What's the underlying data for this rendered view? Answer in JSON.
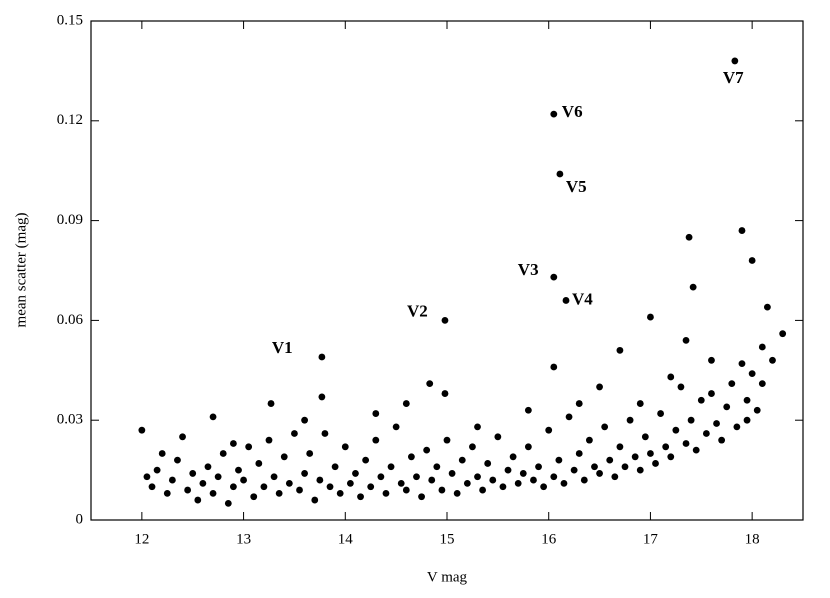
{
  "chart_data": {
    "type": "scatter",
    "xlabel": "V mag",
    "ylabel": "mean scatter (mag)",
    "xlim": [
      11.5,
      18.5
    ],
    "ylim": [
      0,
      0.15
    ],
    "xticks": [
      12,
      13,
      14,
      15,
      16,
      17,
      18
    ],
    "yticks": [
      0,
      0.03,
      0.06,
      0.09,
      0.12,
      0.15
    ],
    "color": "#000000",
    "x": [
      12.1,
      12.15,
      12.2,
      12.25,
      12.3,
      12.35,
      12.4,
      12.45,
      12.5,
      12.55,
      12.6,
      12.65,
      12.7,
      12.75,
      12.8,
      12.85,
      12.9,
      12.95,
      13.0,
      13.05,
      13.1,
      13.15,
      13.2,
      13.25,
      13.3,
      13.35,
      13.4,
      13.45,
      13.5,
      13.55,
      13.6,
      13.65,
      13.7,
      13.75,
      13.8,
      13.85,
      13.9,
      13.95,
      14.0,
      14.05,
      14.1,
      14.15,
      14.2,
      14.25,
      14.3,
      14.35,
      14.4,
      14.45,
      14.5,
      14.55,
      14.6,
      14.65,
      14.7,
      14.75,
      14.8,
      14.85,
      14.9,
      14.95,
      15.0,
      15.05,
      15.1,
      15.15,
      15.2,
      15.25,
      15.3,
      15.35,
      15.4,
      15.45,
      15.5,
      15.55,
      15.6,
      15.65,
      15.7,
      15.75,
      15.8,
      15.85,
      15.9,
      15.95,
      16.0,
      16.05,
      16.1,
      16.15,
      16.2,
      16.25,
      16.3,
      16.35,
      16.4,
      16.45,
      16.5,
      16.55,
      16.6,
      16.65,
      16.7,
      16.75,
      16.8,
      16.85,
      16.9,
      16.95,
      17.0,
      17.05,
      17.1,
      17.15,
      17.2,
      17.25,
      17.3,
      17.35,
      17.4,
      17.45,
      17.5,
      17.55,
      17.6,
      17.65,
      17.7,
      17.75,
      17.8,
      17.85,
      17.9,
      17.95,
      18.0,
      18.05,
      18.1,
      18.2,
      12.05,
      12.9,
      13.6,
      14.6,
      15.3,
      15.8,
      16.5,
      16.9,
      17.2,
      17.6,
      17.95,
      12.0,
      12.7,
      13.27,
      13.77,
      14.3,
      14.83,
      14.98,
      16.05,
      16.3,
      16.7,
      17.0,
      17.38,
      17.42,
      17.9,
      18.0,
      18.15,
      18.3,
      18.1,
      17.35
    ],
    "y": [
      0.01,
      0.015,
      0.02,
      0.008,
      0.012,
      0.018,
      0.025,
      0.009,
      0.014,
      0.006,
      0.011,
      0.016,
      0.008,
      0.013,
      0.02,
      0.005,
      0.01,
      0.015,
      0.012,
      0.022,
      0.007,
      0.017,
      0.01,
      0.024,
      0.013,
      0.008,
      0.019,
      0.011,
      0.026,
      0.009,
      0.014,
      0.02,
      0.006,
      0.012,
      0.026,
      0.01,
      0.016,
      0.008,
      0.022,
      0.011,
      0.014,
      0.007,
      0.018,
      0.01,
      0.024,
      0.013,
      0.008,
      0.016,
      0.028,
      0.011,
      0.009,
      0.019,
      0.013,
      0.007,
      0.021,
      0.012,
      0.016,
      0.009,
      0.024,
      0.014,
      0.008,
      0.018,
      0.011,
      0.022,
      0.013,
      0.009,
      0.017,
      0.012,
      0.025,
      0.01,
      0.015,
      0.019,
      0.011,
      0.014,
      0.022,
      0.012,
      0.016,
      0.01,
      0.027,
      0.013,
      0.018,
      0.011,
      0.031,
      0.015,
      0.02,
      0.012,
      0.024,
      0.016,
      0.014,
      0.028,
      0.018,
      0.013,
      0.022,
      0.016,
      0.03,
      0.019,
      0.015,
      0.025,
      0.02,
      0.017,
      0.032,
      0.022,
      0.019,
      0.027,
      0.04,
      0.023,
      0.03,
      0.021,
      0.036,
      0.026,
      0.048,
      0.029,
      0.024,
      0.034,
      0.041,
      0.028,
      0.047,
      0.036,
      0.044,
      0.033,
      0.052,
      0.048,
      0.013,
      0.023,
      0.03,
      0.035,
      0.028,
      0.033,
      0.04,
      0.035,
      0.043,
      0.038,
      0.03,
      0.027,
      0.031,
      0.035,
      0.037,
      0.032,
      0.041,
      0.038,
      0.046,
      0.035,
      0.051,
      0.061,
      0.085,
      0.07,
      0.087,
      0.078,
      0.064,
      0.056,
      0.041,
      0.054
    ],
    "variables": {
      "labels": [
        "V1",
        "V2",
        "V3",
        "V4",
        "V5",
        "V6",
        "V7"
      ],
      "x": [
        13.77,
        14.98,
        16.05,
        16.17,
        16.11,
        16.05,
        17.83
      ],
      "y": [
        0.049,
        0.06,
        0.073,
        0.066,
        0.104,
        0.122,
        0.138
      ]
    }
  }
}
